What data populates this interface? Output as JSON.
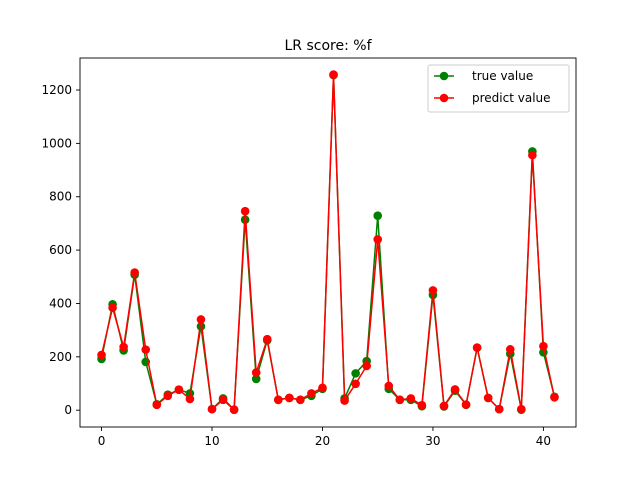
{
  "chart_data": {
    "type": "line",
    "title": "LR score: %f",
    "xlabel": "",
    "ylabel": "",
    "xlim": [
      -1.95,
      42.95
    ],
    "ylim": [
      -63,
      1320
    ],
    "xticks": [
      0,
      10,
      20,
      30,
      40
    ],
    "yticks": [
      0,
      200,
      400,
      600,
      800,
      1000,
      1200
    ],
    "grid": false,
    "legend_position": "top-right",
    "x": [
      0,
      1,
      2,
      3,
      4,
      5,
      6,
      7,
      8,
      9,
      10,
      11,
      12,
      13,
      14,
      15,
      16,
      17,
      18,
      19,
      20,
      21,
      22,
      23,
      24,
      25,
      26,
      27,
      28,
      29,
      30,
      31,
      32,
      33,
      34,
      35,
      36,
      37,
      38,
      39,
      40,
      41
    ],
    "series": [
      {
        "name": "true value",
        "color": "#008000",
        "values": [
          192,
          397,
          224,
          508,
          181,
          22,
          58,
          77,
          63,
          314,
          4,
          44,
          2,
          714,
          117,
          262,
          39,
          46,
          39,
          54,
          80,
          1256,
          44,
          138,
          184,
          729,
          80,
          39,
          39,
          15,
          432,
          14,
          73,
          20,
          234,
          46,
          4,
          211,
          2,
          970,
          217,
          50
        ]
      },
      {
        "name": "predict value",
        "color": "#ff0000",
        "values": [
          207,
          384,
          237,
          516,
          227,
          20,
          54,
          77,
          42,
          340,
          4,
          39,
          2,
          746,
          141,
          266,
          39,
          46,
          39,
          63,
          84,
          1258,
          36,
          99,
          166,
          640,
          91,
          39,
          44,
          19,
          449,
          16,
          78,
          21,
          235,
          46,
          4,
          228,
          4,
          956,
          240,
          48
        ]
      }
    ]
  }
}
